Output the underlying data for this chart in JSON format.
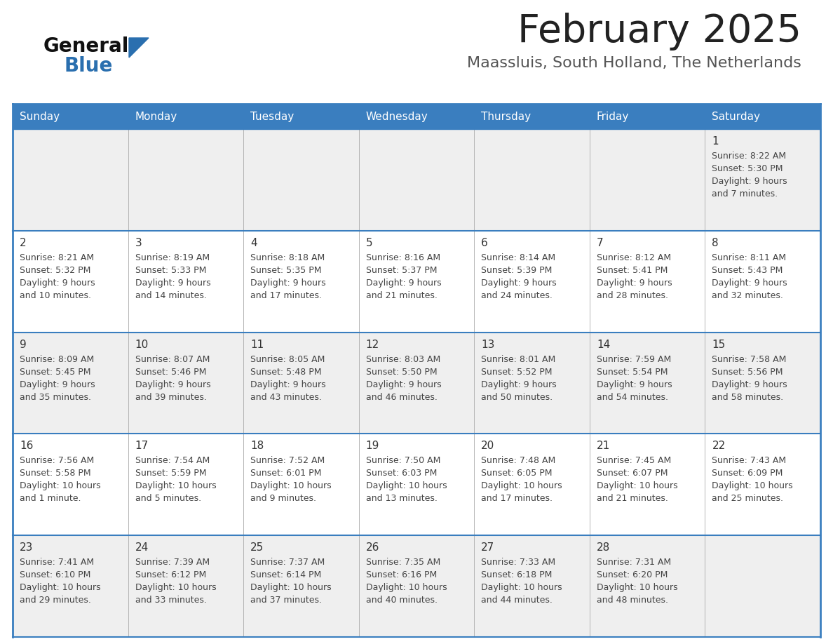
{
  "title": "February 2025",
  "subtitle": "Maassluis, South Holland, The Netherlands",
  "days_of_week": [
    "Sunday",
    "Monday",
    "Tuesday",
    "Wednesday",
    "Thursday",
    "Friday",
    "Saturday"
  ],
  "header_bg": "#3a7ebf",
  "header_text": "#ffffff",
  "cell_bg_row0": "#efefef",
  "cell_bg_row1": "#ffffff",
  "cell_bg_row2": "#efefef",
  "cell_bg_row3": "#ffffff",
  "cell_bg_row4": "#efefef",
  "border_color_heavy": "#3a7ebf",
  "border_color_light": "#aaaaaa",
  "day_number_color": "#333333",
  "info_text_color": "#444444",
  "title_color": "#222222",
  "subtitle_color": "#555555",
  "logo_general_color": "#111111",
  "logo_blue_color": "#2a6faf",
  "logo_triangle_color": "#2a6faf",
  "calendar_data": [
    [
      null,
      null,
      null,
      null,
      null,
      null,
      {
        "day": 1,
        "sunrise": "8:22 AM",
        "sunset": "5:30 PM",
        "daylight": "9 hours and 7 minutes."
      }
    ],
    [
      {
        "day": 2,
        "sunrise": "8:21 AM",
        "sunset": "5:32 PM",
        "daylight": "9 hours and 10 minutes."
      },
      {
        "day": 3,
        "sunrise": "8:19 AM",
        "sunset": "5:33 PM",
        "daylight": "9 hours and 14 minutes."
      },
      {
        "day": 4,
        "sunrise": "8:18 AM",
        "sunset": "5:35 PM",
        "daylight": "9 hours and 17 minutes."
      },
      {
        "day": 5,
        "sunrise": "8:16 AM",
        "sunset": "5:37 PM",
        "daylight": "9 hours and 21 minutes."
      },
      {
        "day": 6,
        "sunrise": "8:14 AM",
        "sunset": "5:39 PM",
        "daylight": "9 hours and 24 minutes."
      },
      {
        "day": 7,
        "sunrise": "8:12 AM",
        "sunset": "5:41 PM",
        "daylight": "9 hours and 28 minutes."
      },
      {
        "day": 8,
        "sunrise": "8:11 AM",
        "sunset": "5:43 PM",
        "daylight": "9 hours and 32 minutes."
      }
    ],
    [
      {
        "day": 9,
        "sunrise": "8:09 AM",
        "sunset": "5:45 PM",
        "daylight": "9 hours and 35 minutes."
      },
      {
        "day": 10,
        "sunrise": "8:07 AM",
        "sunset": "5:46 PM",
        "daylight": "9 hours and 39 minutes."
      },
      {
        "day": 11,
        "sunrise": "8:05 AM",
        "sunset": "5:48 PM",
        "daylight": "9 hours and 43 minutes."
      },
      {
        "day": 12,
        "sunrise": "8:03 AM",
        "sunset": "5:50 PM",
        "daylight": "9 hours and 46 minutes."
      },
      {
        "day": 13,
        "sunrise": "8:01 AM",
        "sunset": "5:52 PM",
        "daylight": "9 hours and 50 minutes."
      },
      {
        "day": 14,
        "sunrise": "7:59 AM",
        "sunset": "5:54 PM",
        "daylight": "9 hours and 54 minutes."
      },
      {
        "day": 15,
        "sunrise": "7:58 AM",
        "sunset": "5:56 PM",
        "daylight": "9 hours and 58 minutes."
      }
    ],
    [
      {
        "day": 16,
        "sunrise": "7:56 AM",
        "sunset": "5:58 PM",
        "daylight": "10 hours and 1 minute."
      },
      {
        "day": 17,
        "sunrise": "7:54 AM",
        "sunset": "5:59 PM",
        "daylight": "10 hours and 5 minutes."
      },
      {
        "day": 18,
        "sunrise": "7:52 AM",
        "sunset": "6:01 PM",
        "daylight": "10 hours and 9 minutes."
      },
      {
        "day": 19,
        "sunrise": "7:50 AM",
        "sunset": "6:03 PM",
        "daylight": "10 hours and 13 minutes."
      },
      {
        "day": 20,
        "sunrise": "7:48 AM",
        "sunset": "6:05 PM",
        "daylight": "10 hours and 17 minutes."
      },
      {
        "day": 21,
        "sunrise": "7:45 AM",
        "sunset": "6:07 PM",
        "daylight": "10 hours and 21 minutes."
      },
      {
        "day": 22,
        "sunrise": "7:43 AM",
        "sunset": "6:09 PM",
        "daylight": "10 hours and 25 minutes."
      }
    ],
    [
      {
        "day": 23,
        "sunrise": "7:41 AM",
        "sunset": "6:10 PM",
        "daylight": "10 hours and 29 minutes."
      },
      {
        "day": 24,
        "sunrise": "7:39 AM",
        "sunset": "6:12 PM",
        "daylight": "10 hours and 33 minutes."
      },
      {
        "day": 25,
        "sunrise": "7:37 AM",
        "sunset": "6:14 PM",
        "daylight": "10 hours and 37 minutes."
      },
      {
        "day": 26,
        "sunrise": "7:35 AM",
        "sunset": "6:16 PM",
        "daylight": "10 hours and 40 minutes."
      },
      {
        "day": 27,
        "sunrise": "7:33 AM",
        "sunset": "6:18 PM",
        "daylight": "10 hours and 44 minutes."
      },
      {
        "day": 28,
        "sunrise": "7:31 AM",
        "sunset": "6:20 PM",
        "daylight": "10 hours and 48 minutes."
      },
      null
    ]
  ]
}
